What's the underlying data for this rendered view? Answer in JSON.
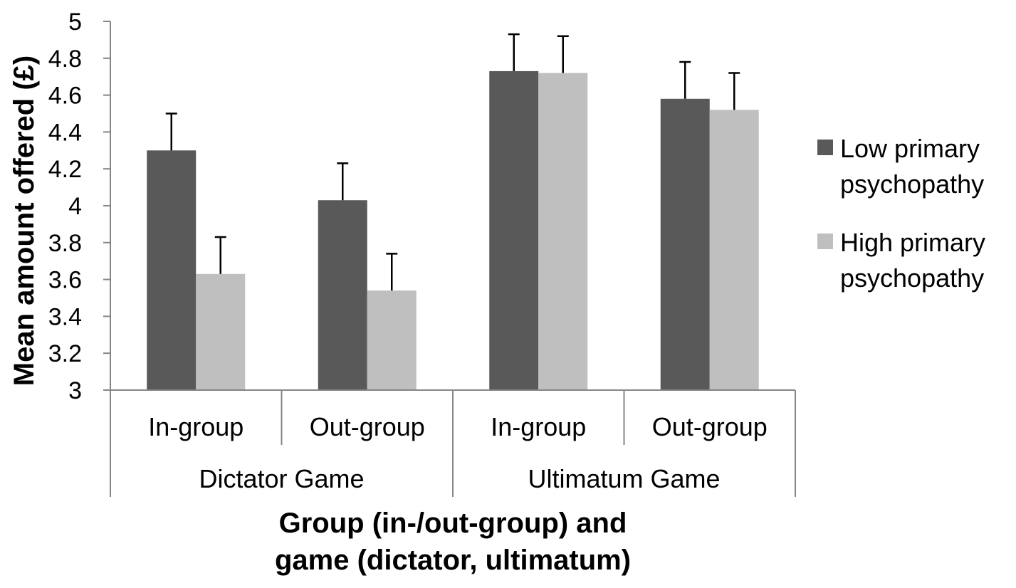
{
  "chart_data": {
    "type": "bar",
    "ylabel": "Mean amount offered (£)",
    "xlabel_lines": [
      "Group (in-/out-group) and",
      "game (dictator, ultimatum)"
    ],
    "ylim": [
      3,
      5
    ],
    "yticks": [
      "3",
      "3.2",
      "3.4",
      "3.6",
      "3.8",
      "4",
      "4.2",
      "4.4",
      "4.6",
      "4.8",
      "5"
    ],
    "categories": [
      "In-group",
      "Out-group",
      "In-group",
      "Out-group"
    ],
    "category_groups": [
      {
        "label": "Dictator Game",
        "span": [
          0,
          1
        ]
      },
      {
        "label": "Ultimatum Game",
        "span": [
          2,
          3
        ]
      }
    ],
    "series": [
      {
        "legend_lines": [
          "Low primary",
          "psychopathy"
        ],
        "color": "#595959",
        "values": [
          4.3,
          4.03,
          4.73,
          4.58
        ],
        "error_upper": [
          0.2,
          0.2,
          0.2,
          0.2
        ]
      },
      {
        "legend_lines": [
          "High primary",
          "psychopathy"
        ],
        "color": "#bfbfbf",
        "values": [
          3.63,
          3.54,
          4.72,
          4.52
        ],
        "error_upper": [
          0.2,
          0.2,
          0.2,
          0.2
        ]
      }
    ],
    "grid": false,
    "legend_position": "right"
  }
}
